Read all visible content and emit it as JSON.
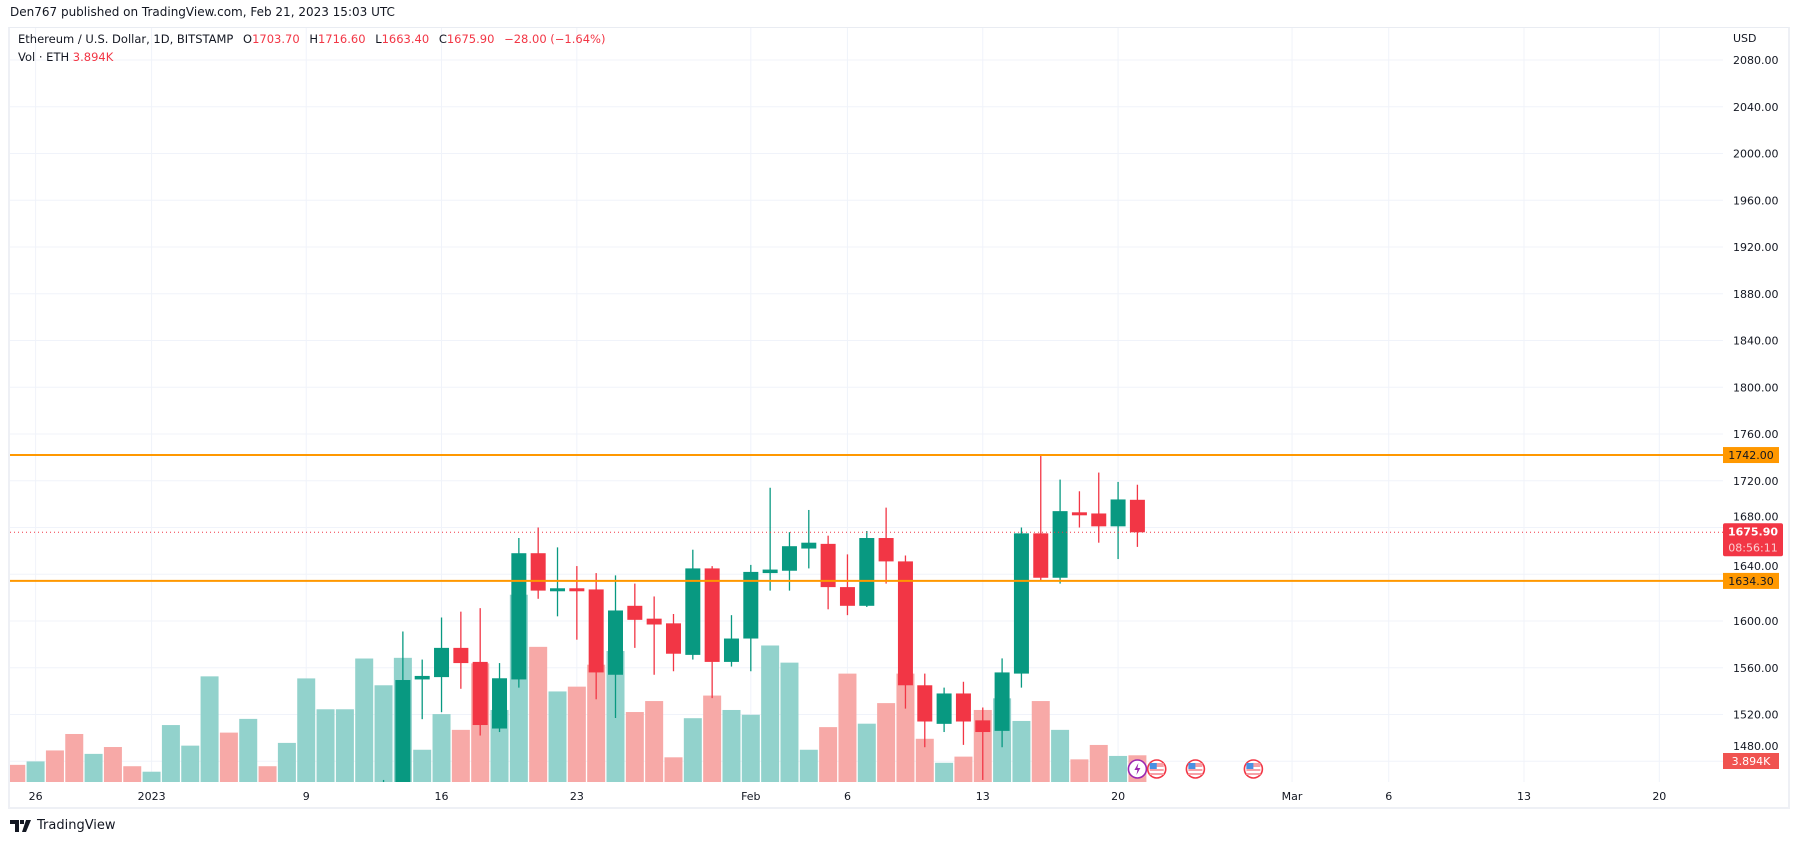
{
  "header": {
    "published": "Den767 published on TradingView.com, Feb 21, 2023 15:03 UTC"
  },
  "legend": {
    "symbol": "Ethereum / U.S. Dollar, 1D, BITSTAMP",
    "open_label": "O",
    "open": "1703.70",
    "high_label": "H",
    "high": "1716.60",
    "low_label": "L",
    "low": "1663.40",
    "close_label": "C",
    "close": "1675.90",
    "change": "−28.00 (−1.64%)",
    "volume_label": "Vol · ETH",
    "volume": "3.894K"
  },
  "footer": {
    "logo_text": "TradingView"
  },
  "colors": {
    "up": "#089981",
    "down": "#F23645",
    "vol_up": "#92D2CC",
    "vol_down": "#F7A9A7",
    "level_line": "#FF9800",
    "last_price": "#F23645",
    "grid": "#F0F3FA"
  },
  "chart_data": {
    "type": "candlestick",
    "currency_label": "USD",
    "price_range": [
      1462,
      2090
    ],
    "grid": true,
    "price_ticks": [
      "2080.00",
      "2040.00",
      "2000.00",
      "1960.00",
      "1920.00",
      "1880.00",
      "1840.00",
      "1800.00",
      "1760.00",
      "1720.00",
      "1680.00",
      "1640.00",
      "1600.00",
      "1560.00",
      "1520.00",
      "1480.00"
    ],
    "time_ticks": [
      {
        "label": "26",
        "date": "2022-12-26"
      },
      {
        "label": "2023",
        "date": "2023-01-01"
      },
      {
        "label": "9",
        "date": "2023-01-09"
      },
      {
        "label": "16",
        "date": "2023-01-16"
      },
      {
        "label": "23",
        "date": "2023-01-23"
      },
      {
        "label": "Feb",
        "date": "2023-02-01"
      },
      {
        "label": "6",
        "date": "2023-02-06"
      },
      {
        "label": "13",
        "date": "2023-02-13"
      },
      {
        "label": "20",
        "date": "2023-02-20"
      },
      {
        "label": "Mar",
        "date": "2023-03-01"
      },
      {
        "label": "6",
        "date": "2023-03-06"
      },
      {
        "label": "13",
        "date": "2023-03-13"
      },
      {
        "label": "20",
        "date": "2023-03-20"
      }
    ],
    "candles": [
      {
        "date": "2023-01-13",
        "o": 1418,
        "h": 1464,
        "l": 1395,
        "c": 1451
      },
      {
        "date": "2023-01-14",
        "o": 1451,
        "h": 1591,
        "l": 1440,
        "c": 1549.5
      },
      {
        "date": "2023-01-15",
        "o": 1550,
        "h": 1567,
        "l": 1516,
        "c": 1553
      },
      {
        "date": "2023-01-16",
        "o": 1552,
        "h": 1603,
        "l": 1522,
        "c": 1577
      },
      {
        "date": "2023-01-17",
        "o": 1577,
        "h": 1608,
        "l": 1542,
        "c": 1564
      },
      {
        "date": "2023-01-18",
        "o": 1565,
        "h": 1611,
        "l": 1502,
        "c": 1511
      },
      {
        "date": "2023-01-19",
        "o": 1508,
        "h": 1564,
        "l": 1505,
        "c": 1551
      },
      {
        "date": "2023-01-20",
        "o": 1550,
        "h": 1671,
        "l": 1543,
        "c": 1658
      },
      {
        "date": "2023-01-21",
        "o": 1658,
        "h": 1680,
        "l": 1619,
        "c": 1626
      },
      {
        "date": "2023-01-22",
        "o": 1626,
        "h": 1663,
        "l": 1604,
        "c": 1628
      },
      {
        "date": "2023-01-23",
        "o": 1628,
        "h": 1647,
        "l": 1584,
        "c": 1626
      },
      {
        "date": "2023-01-24",
        "o": 1627,
        "h": 1641,
        "l": 1533,
        "c": 1556
      },
      {
        "date": "2023-01-25",
        "o": 1554,
        "h": 1639,
        "l": 1517,
        "c": 1609
      },
      {
        "date": "2023-01-26",
        "o": 1613,
        "h": 1632,
        "l": 1577,
        "c": 1601
      },
      {
        "date": "2023-01-27",
        "o": 1602,
        "h": 1621,
        "l": 1554,
        "c": 1597
      },
      {
        "date": "2023-01-28",
        "o": 1598,
        "h": 1606,
        "l": 1557,
        "c": 1572
      },
      {
        "date": "2023-01-29",
        "o": 1571,
        "h": 1661,
        "l": 1567,
        "c": 1645
      },
      {
        "date": "2023-01-30",
        "o": 1645,
        "h": 1647,
        "l": 1534,
        "c": 1565
      },
      {
        "date": "2023-01-31",
        "o": 1565,
        "h": 1605,
        "l": 1561,
        "c": 1585
      },
      {
        "date": "2023-02-01",
        "o": 1585,
        "h": 1648,
        "l": 1557,
        "c": 1642
      },
      {
        "date": "2023-02-02",
        "o": 1641,
        "h": 1714,
        "l": 1626,
        "c": 1644
      },
      {
        "date": "2023-02-03",
        "o": 1643,
        "h": 1676,
        "l": 1626,
        "c": 1664
      },
      {
        "date": "2023-02-04",
        "o": 1662,
        "h": 1695,
        "l": 1645,
        "c": 1667
      },
      {
        "date": "2023-02-05",
        "o": 1666,
        "h": 1673,
        "l": 1610,
        "c": 1629
      },
      {
        "date": "2023-02-06",
        "o": 1629,
        "h": 1657,
        "l": 1605,
        "c": 1613
      },
      {
        "date": "2023-02-07",
        "o": 1613,
        "h": 1677,
        "l": 1612,
        "c": 1671
      },
      {
        "date": "2023-02-08",
        "o": 1671,
        "h": 1697,
        "l": 1632,
        "c": 1651
      },
      {
        "date": "2023-02-09",
        "o": 1651,
        "h": 1656,
        "l": 1525,
        "c": 1545
      },
      {
        "date": "2023-02-10",
        "o": 1545,
        "h": 1555,
        "l": 1492,
        "c": 1514
      },
      {
        "date": "2023-02-11",
        "o": 1512,
        "h": 1543,
        "l": 1505,
        "c": 1538
      },
      {
        "date": "2023-02-12",
        "o": 1538,
        "h": 1548,
        "l": 1494,
        "c": 1514
      },
      {
        "date": "2023-02-13",
        "o": 1515,
        "h": 1526,
        "l": 1464,
        "c": 1505
      },
      {
        "date": "2023-02-14",
        "o": 1506,
        "h": 1568,
        "l": 1492,
        "c": 1556
      },
      {
        "date": "2023-02-15",
        "o": 1555,
        "h": 1680,
        "l": 1543,
        "c": 1675
      },
      {
        "date": "2023-02-16",
        "o": 1675,
        "h": 1742,
        "l": 1634,
        "c": 1637
      },
      {
        "date": "2023-02-17",
        "o": 1637,
        "h": 1721,
        "l": 1632,
        "c": 1694
      },
      {
        "date": "2023-02-18",
        "o": 1693,
        "h": 1711,
        "l": 1680,
        "c": 1691
      },
      {
        "date": "2023-02-19",
        "o": 1692,
        "h": 1727,
        "l": 1667,
        "c": 1681
      },
      {
        "date": "2023-02-20",
        "o": 1681,
        "h": 1719,
        "l": 1653,
        "c": 1704
      },
      {
        "date": "2023-02-21",
        "o": 1703.7,
        "h": 1716.6,
        "l": 1663.4,
        "c": 1675.9
      }
    ],
    "volume_unit": "K ETH",
    "volume": [
      {
        "date": "2022-12-25",
        "v": 2.5,
        "dir": "down"
      },
      {
        "date": "2022-12-26",
        "v": 3.0,
        "dir": "up"
      },
      {
        "date": "2022-12-27",
        "v": 4.6,
        "dir": "down"
      },
      {
        "date": "2022-12-28",
        "v": 7.0,
        "dir": "down"
      },
      {
        "date": "2022-12-29",
        "v": 4.1,
        "dir": "up"
      },
      {
        "date": "2022-12-30",
        "v": 5.1,
        "dir": "down"
      },
      {
        "date": "2022-12-31",
        "v": 2.3,
        "dir": "down"
      },
      {
        "date": "2023-01-01",
        "v": 1.5,
        "dir": "up"
      },
      {
        "date": "2023-01-02",
        "v": 8.3,
        "dir": "up"
      },
      {
        "date": "2023-01-03",
        "v": 5.3,
        "dir": "up"
      },
      {
        "date": "2023-01-04",
        "v": 15.4,
        "dir": "up"
      },
      {
        "date": "2023-01-05",
        "v": 7.2,
        "dir": "down"
      },
      {
        "date": "2023-01-06",
        "v": 9.2,
        "dir": "up"
      },
      {
        "date": "2023-01-07",
        "v": 2.3,
        "dir": "down"
      },
      {
        "date": "2023-01-08",
        "v": 5.7,
        "dir": "up"
      },
      {
        "date": "2023-01-09",
        "v": 15.1,
        "dir": "up"
      },
      {
        "date": "2023-01-10",
        "v": 10.6,
        "dir": "up"
      },
      {
        "date": "2023-01-11",
        "v": 10.6,
        "dir": "up"
      },
      {
        "date": "2023-01-12",
        "v": 18.0,
        "dir": "up"
      },
      {
        "date": "2023-01-13",
        "v": 14.1,
        "dir": "up"
      },
      {
        "date": "2023-01-14",
        "v": 18.1,
        "dir": "up"
      },
      {
        "date": "2023-01-15",
        "v": 4.7,
        "dir": "up"
      },
      {
        "date": "2023-01-16",
        "v": 9.9,
        "dir": "up"
      },
      {
        "date": "2023-01-17",
        "v": 7.6,
        "dir": "down"
      },
      {
        "date": "2023-01-18",
        "v": 17.3,
        "dir": "down"
      },
      {
        "date": "2023-01-19",
        "v": 10.5,
        "dir": "up"
      },
      {
        "date": "2023-01-20",
        "v": 27.3,
        "dir": "up"
      },
      {
        "date": "2023-01-21",
        "v": 19.7,
        "dir": "down"
      },
      {
        "date": "2023-01-22",
        "v": 13.2,
        "dir": "up"
      },
      {
        "date": "2023-01-23",
        "v": 13.9,
        "dir": "down"
      },
      {
        "date": "2023-01-24",
        "v": 17.1,
        "dir": "down"
      },
      {
        "date": "2023-01-25",
        "v": 19.1,
        "dir": "up"
      },
      {
        "date": "2023-01-26",
        "v": 10.2,
        "dir": "down"
      },
      {
        "date": "2023-01-27",
        "v": 11.8,
        "dir": "down"
      },
      {
        "date": "2023-01-28",
        "v": 3.6,
        "dir": "down"
      },
      {
        "date": "2023-01-29",
        "v": 9.3,
        "dir": "up"
      },
      {
        "date": "2023-01-30",
        "v": 12.6,
        "dir": "down"
      },
      {
        "date": "2023-01-31",
        "v": 10.5,
        "dir": "up"
      },
      {
        "date": "2023-02-01",
        "v": 9.8,
        "dir": "up"
      },
      {
        "date": "2023-02-02",
        "v": 19.9,
        "dir": "up"
      },
      {
        "date": "2023-02-03",
        "v": 17.4,
        "dir": "up"
      },
      {
        "date": "2023-02-04",
        "v": 4.7,
        "dir": "up"
      },
      {
        "date": "2023-02-05",
        "v": 8.0,
        "dir": "down"
      },
      {
        "date": "2023-02-06",
        "v": 15.8,
        "dir": "down"
      },
      {
        "date": "2023-02-07",
        "v": 8.5,
        "dir": "up"
      },
      {
        "date": "2023-02-08",
        "v": 11.5,
        "dir": "down"
      },
      {
        "date": "2023-02-09",
        "v": 15.8,
        "dir": "down"
      },
      {
        "date": "2023-02-10",
        "v": 6.3,
        "dir": "down"
      },
      {
        "date": "2023-02-11",
        "v": 2.8,
        "dir": "up"
      },
      {
        "date": "2023-02-12",
        "v": 3.7,
        "dir": "down"
      },
      {
        "date": "2023-02-13",
        "v": 10.5,
        "dir": "down"
      },
      {
        "date": "2023-02-14",
        "v": 12.2,
        "dir": "up"
      },
      {
        "date": "2023-02-15",
        "v": 8.9,
        "dir": "up"
      },
      {
        "date": "2023-02-16",
        "v": 11.8,
        "dir": "down"
      },
      {
        "date": "2023-02-17",
        "v": 7.6,
        "dir": "up"
      },
      {
        "date": "2023-02-18",
        "v": 3.3,
        "dir": "down"
      },
      {
        "date": "2023-02-19",
        "v": 5.4,
        "dir": "down"
      },
      {
        "date": "2023-02-20",
        "v": 3.8,
        "dir": "up"
      },
      {
        "date": "2023-02-21",
        "v": 3.894,
        "dir": "down"
      }
    ],
    "horizontal_levels": [
      {
        "price": 1742.0,
        "label": "1742.00"
      },
      {
        "price": 1634.3,
        "label": "1634.30"
      }
    ],
    "last_price": {
      "price": 1675.9,
      "label": "1675.90",
      "countdown": "08:56:11"
    },
    "volume_last_label": "3.894K",
    "events": [
      {
        "date": "2023-02-21",
        "icon": "lightning-icon"
      },
      {
        "date": "2023-02-22",
        "icon": "us-flag-icon"
      },
      {
        "date": "2023-02-24",
        "icon": "us-flag-icon"
      },
      {
        "date": "2023-02-27",
        "icon": "us-flag-icon"
      }
    ]
  }
}
